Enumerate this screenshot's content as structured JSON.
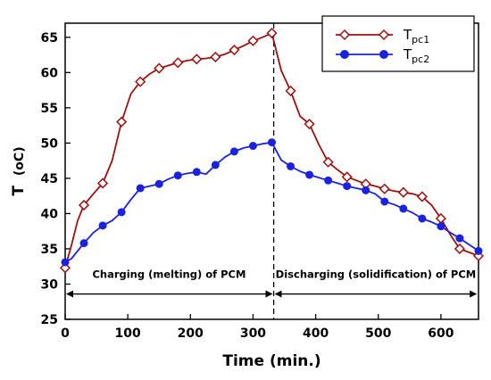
{
  "chart_data": {
    "type": "line",
    "xlabel": "Time (min.)",
    "ylabel": "T (oC)",
    "ylabel_main": "T",
    "ylabel_unit": "(oC)",
    "xlim": [
      0,
      660
    ],
    "ylim": [
      25,
      67
    ],
    "xticks": [
      0,
      100,
      200,
      300,
      400,
      500,
      600
    ],
    "yticks": [
      25,
      30,
      35,
      40,
      45,
      50,
      55,
      60,
      65
    ],
    "grid": false,
    "legend_position": "top-right",
    "series": [
      {
        "name": "Tpc1",
        "name_main": "T",
        "name_sub": "pc1",
        "color": "#a01010",
        "marker": "open-diamond",
        "x": [
          0,
          10,
          20,
          30,
          45,
          60,
          75,
          90,
          105,
          120,
          135,
          150,
          165,
          180,
          195,
          210,
          225,
          240,
          255,
          270,
          285,
          300,
          315,
          330,
          345,
          360,
          375,
          390,
          405,
          420,
          435,
          450,
          465,
          480,
          495,
          510,
          525,
          540,
          555,
          570,
          585,
          600,
          615,
          630,
          645,
          660
        ],
        "values": [
          32.3,
          35.5,
          39.0,
          41.2,
          42.8,
          44.3,
          47.5,
          53.0,
          57.0,
          58.7,
          59.8,
          60.6,
          61.0,
          61.4,
          61.7,
          61.9,
          62.0,
          62.2,
          62.6,
          63.2,
          63.8,
          64.5,
          65.0,
          65.6,
          60.3,
          57.4,
          53.8,
          52.7,
          49.8,
          47.3,
          46.2,
          45.2,
          44.7,
          44.2,
          43.9,
          43.5,
          43.2,
          43.0,
          42.8,
          42.4,
          41.2,
          39.3,
          37.0,
          35.0,
          34.5,
          34.0
        ],
        "marked": [
          true,
          false,
          false,
          true,
          false,
          true,
          false,
          true,
          false,
          true,
          false,
          true,
          false,
          true,
          false,
          true,
          false,
          true,
          false,
          true,
          false,
          true,
          false,
          true,
          false,
          true,
          false,
          true,
          false,
          true,
          false,
          true,
          false,
          true,
          false,
          true,
          false,
          true,
          false,
          true,
          false,
          true,
          false,
          true,
          false,
          true
        ]
      },
      {
        "name": "Tpc2",
        "name_main": "T",
        "name_sub": "pc2",
        "color": "#1a22e0",
        "marker": "filled-circle",
        "x": [
          0,
          10,
          20,
          30,
          45,
          60,
          75,
          90,
          105,
          120,
          135,
          150,
          165,
          180,
          195,
          210,
          225,
          240,
          255,
          270,
          285,
          300,
          315,
          330,
          345,
          360,
          375,
          390,
          405,
          420,
          435,
          450,
          465,
          480,
          495,
          510,
          525,
          540,
          555,
          570,
          585,
          600,
          615,
          630,
          645,
          660
        ],
        "values": [
          33.1,
          33.6,
          34.7,
          35.8,
          37.3,
          38.3,
          39.0,
          40.2,
          42.0,
          43.6,
          43.9,
          44.2,
          44.9,
          45.4,
          45.7,
          45.9,
          45.6,
          46.9,
          48.0,
          48.8,
          49.3,
          49.6,
          49.9,
          50.1,
          47.6,
          46.7,
          46.0,
          45.5,
          45.1,
          44.7,
          44.3,
          43.9,
          43.6,
          43.3,
          42.8,
          41.7,
          41.3,
          40.7,
          40.1,
          39.3,
          38.8,
          38.2,
          37.3,
          36.5,
          35.6,
          34.7
        ],
        "marked": [
          true,
          false,
          false,
          true,
          false,
          true,
          false,
          true,
          false,
          true,
          false,
          true,
          false,
          true,
          false,
          true,
          false,
          true,
          false,
          true,
          false,
          true,
          false,
          true,
          false,
          true,
          false,
          true,
          false,
          true,
          false,
          true,
          false,
          true,
          false,
          true,
          false,
          true,
          false,
          true,
          false,
          true,
          false,
          true,
          false,
          true
        ]
      }
    ],
    "divider_x": 333,
    "annotations": {
      "charging": {
        "text": "Charging (melting) of PCM",
        "arrow_x": [
          3,
          330
        ],
        "arrow_y": 28.6,
        "text_x": 166,
        "text_y": 30.9
      },
      "discharging": {
        "text": "Discharging (solidification) of PCM",
        "arrow_x": [
          336,
          656
        ],
        "arrow_y": 28.6,
        "text_x": 496,
        "text_y": 30.9
      }
    }
  }
}
